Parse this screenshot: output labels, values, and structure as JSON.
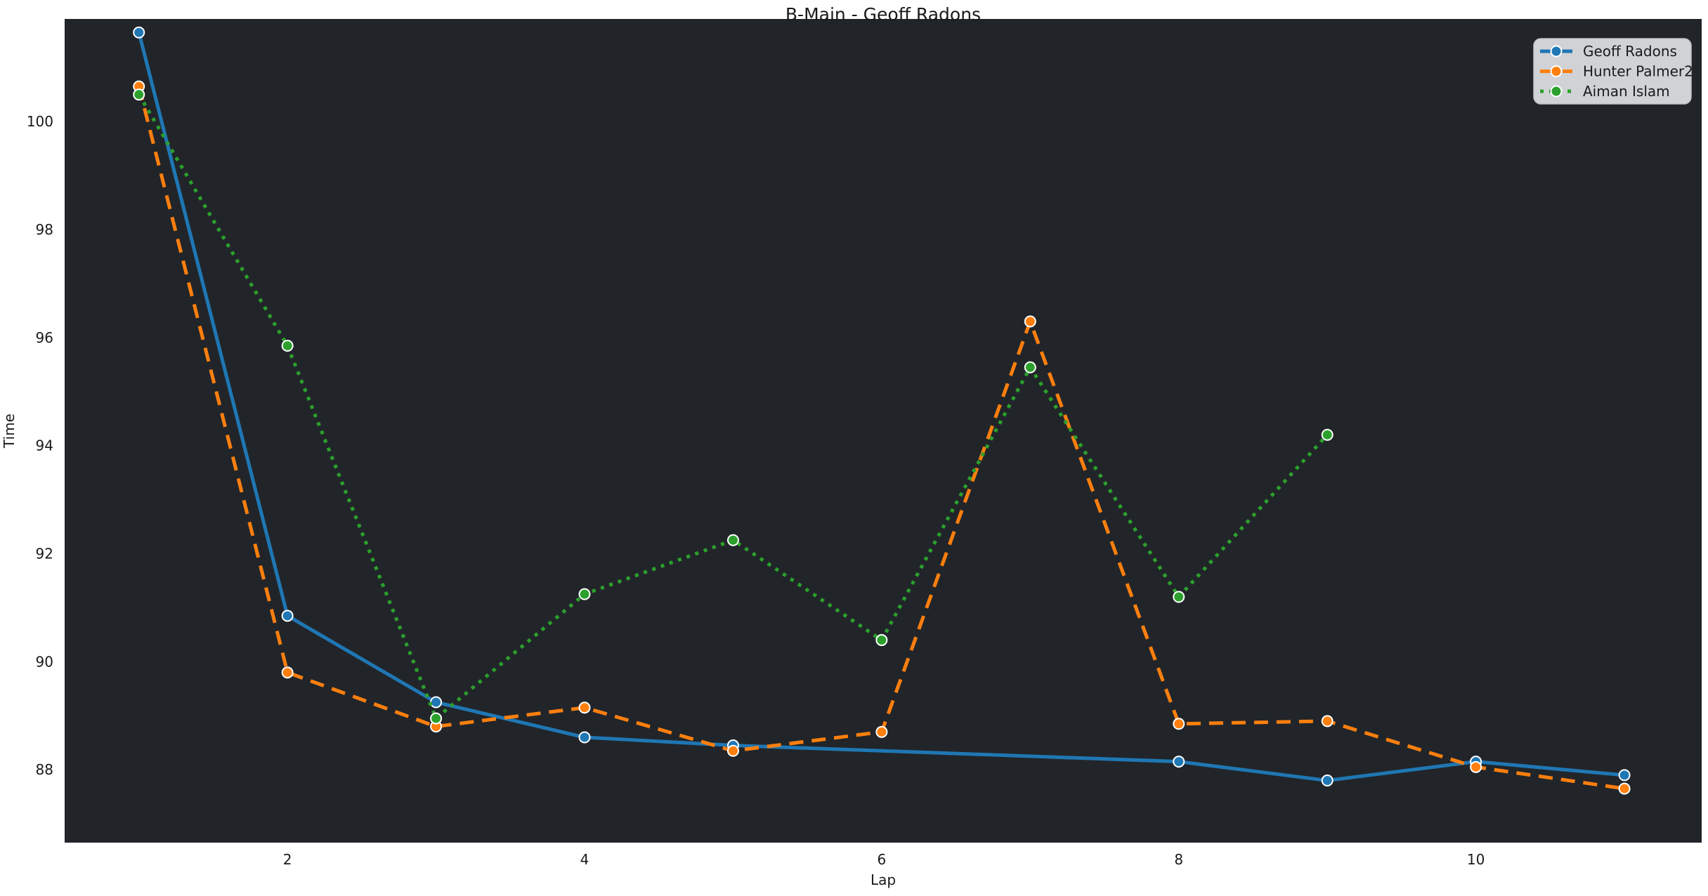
{
  "chart_data": {
    "type": "line",
    "title": "B-Main - Geoff Radons",
    "xlabel": "Lap",
    "ylabel": "Time",
    "xlim": [
      0.5,
      11.52
    ],
    "ylim": [
      86.65,
      101.9
    ],
    "xticks": [
      2,
      4,
      6,
      8,
      10
    ],
    "yticks": [
      88,
      90,
      92,
      94,
      96,
      98,
      100
    ],
    "grid": false,
    "legend": {
      "position": "upper-right"
    },
    "colors": {
      "figure_bg": "#ffffff",
      "plot_bg": "#212529",
      "text": "#1a1a1a",
      "legend_bg": "#d0d2d6",
      "legend_border": "#bfc1c5",
      "marker_edge": "#ffffff"
    },
    "series": [
      {
        "name": "Geoff Radons",
        "color": "#1f77b4",
        "line_style": "solid",
        "marker": "circle",
        "x": [
          1,
          2,
          3,
          4,
          5,
          8,
          9,
          10,
          11
        ],
        "y": [
          101.65,
          90.85,
          89.25,
          88.6,
          88.45,
          88.15,
          87.8,
          88.15,
          87.9
        ]
      },
      {
        "name": "Hunter Palmer2",
        "color": "#ff7f0e",
        "line_style": "dashed",
        "marker": "circle",
        "x": [
          1,
          2,
          3,
          4,
          5,
          6,
          7,
          8,
          9,
          10,
          11
        ],
        "y": [
          100.65,
          89.8,
          88.8,
          89.15,
          88.35,
          88.7,
          96.3,
          88.85,
          88.9,
          88.05,
          87.65
        ]
      },
      {
        "name": "Aiman Islam",
        "color": "#2ca02c",
        "line_style": "dotted",
        "marker": "circle",
        "x": [
          1,
          2,
          3,
          4,
          5,
          6,
          7,
          8,
          9
        ],
        "y": [
          100.5,
          95.85,
          88.95,
          91.25,
          92.25,
          90.4,
          95.45,
          91.2,
          94.2
        ]
      }
    ]
  }
}
